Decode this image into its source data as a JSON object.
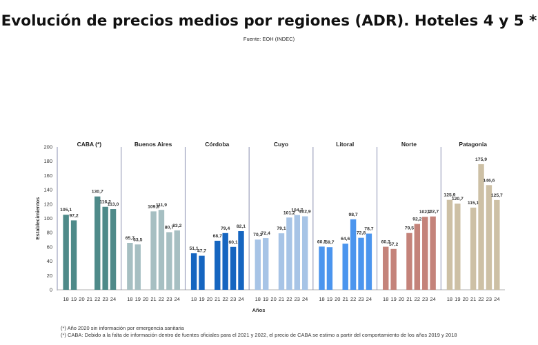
{
  "title": "Evolución de precios medios por regiones (ADR). Hoteles 4 y 5 *",
  "subtitle": "Fuente: EOH (INDEC)",
  "notes": [
    "(*) Año 2020 sin información por emergencia sanitaria",
    "(*) CABA: Debido a la falta de información dentro de fuentes oficiales para el 2021 y 2022, el precio de CABA se estimo a partir del comportamiento de los años 2019 y 2018"
  ],
  "chart_data": {
    "type": "bar",
    "ylabel": "Establecimientos",
    "xlabel": "Años",
    "ylim": [
      0,
      200
    ],
    "yticks": [
      "0",
      "20",
      "40",
      "60",
      "80",
      "100",
      "120",
      "140",
      "160",
      "180",
      "200"
    ],
    "categories": [
      "18",
      "19",
      "20",
      "21",
      "22",
      "23",
      "24"
    ],
    "grid": false,
    "series": [
      {
        "name": "CABA (*)",
        "color": "#4e8a89",
        "values": [
          105.1,
          97.2,
          null,
          null,
          130.7,
          116.2,
          113.0
        ],
        "labels": [
          "105,1",
          "97,2",
          "",
          "",
          "130,7",
          "116,2",
          "113,0"
        ]
      },
      {
        "name": "Buenos Aires",
        "color": "#a6bfc2",
        "values": [
          65.7,
          63.5,
          null,
          109.8,
          111.9,
          80.7,
          83.2
        ],
        "labels": [
          "65,7",
          "63,5",
          "",
          "109,8",
          "111,9",
          "80,7",
          "83,2"
        ]
      },
      {
        "name": "Córdoba",
        "color": "#1565c0",
        "values": [
          51.1,
          47.7,
          null,
          68.7,
          79.4,
          60.1,
          82.1
        ],
        "labels": [
          "51,1",
          "47,7",
          "",
          "68,7",
          "79,4",
          "60,1",
          "82,1"
        ]
      },
      {
        "name": "Cuyo",
        "color": "#a7c4e6",
        "values": [
          70.3,
          72.4,
          null,
          79.1,
          101.2,
          104.7,
          102.9
        ],
        "labels": [
          "70,3",
          "72,4",
          "",
          "79,1",
          "101,2",
          "104,7",
          "102,9"
        ]
      },
      {
        "name": "Litoral",
        "color": "#4b95ee",
        "values": [
          60.5,
          59.7,
          null,
          64.6,
          98.7,
          72.8,
          78.7
        ],
        "labels": [
          "60,5",
          "59,7",
          "",
          "64,6",
          "98,7",
          "72,8",
          "78,7"
        ]
      },
      {
        "name": "Norte",
        "color": "#c4837a",
        "values": [
          60.3,
          57.2,
          null,
          79.5,
          92.2,
          102.2,
          102.7
        ],
        "labels": [
          "60,3",
          "57,2",
          "",
          "79,5",
          "92,2",
          "102,2",
          "102,7"
        ]
      },
      {
        "name": "Patagonia",
        "color": "#cdc0a5",
        "values": [
          125.9,
          120.7,
          null,
          115.1,
          175.9,
          146.6,
          125.7
        ],
        "labels": [
          "125,9",
          "120,7",
          "",
          "115,1",
          "175,9",
          "146,6",
          "125,7"
        ]
      }
    ]
  }
}
